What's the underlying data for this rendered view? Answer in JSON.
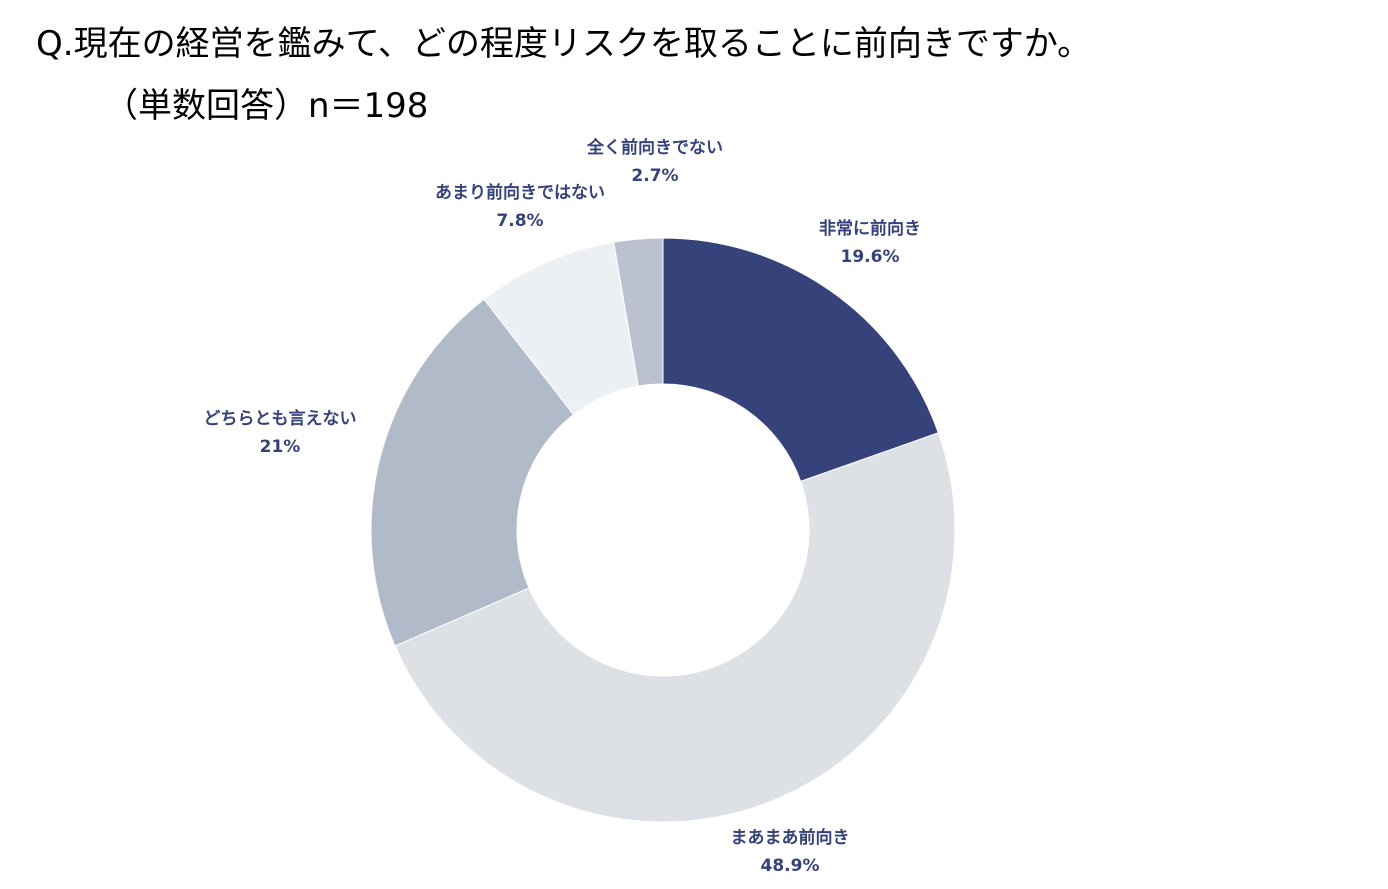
{
  "title": "Q.現在の経営を鑑みて、どの程度リスクを取ることに前向きですか。",
  "subtitle": "（単数回答）n＝198",
  "chart_data": {
    "type": "pie",
    "donut": true,
    "categories": [
      "非常に前向き",
      "まあまあ前向き",
      "どちらとも言えない",
      "あまり前向きではない",
      "全く前向きでない"
    ],
    "values": [
      19.6,
      48.9,
      21,
      7.8,
      2.7
    ],
    "value_labels": [
      "19.6%",
      "48.9%",
      "21%",
      "7.8%",
      "2.7%"
    ],
    "colors": [
      "#36437a",
      "#dde1e6",
      "#b1bac9",
      "#ecf0f4",
      "#bbc1cf"
    ],
    "label_color": "#36437a",
    "start": "12 o'clock",
    "direction": "clockwise"
  }
}
